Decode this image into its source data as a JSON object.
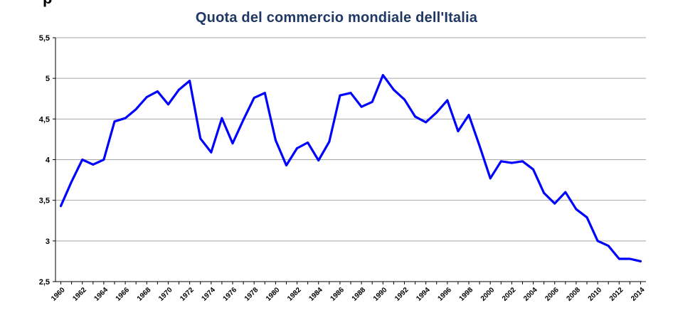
{
  "chart_data": {
    "type": "line",
    "title": "Quota del commercio mondiale dell'Italia",
    "xlabel": "",
    "ylabel": "",
    "ylim": [
      2.5,
      5.5
    ],
    "yticks": [
      "2,5",
      "3",
      "3,5",
      "4",
      "4,5",
      "5",
      "5,5"
    ],
    "grid": true,
    "legend": "none",
    "x_tick_labels": [
      "1960",
      "1962",
      "1964",
      "1966",
      "1968",
      "1970",
      "1972",
      "1974",
      "1976",
      "1978",
      "1980",
      "1982",
      "1984",
      "1986",
      "1988",
      "1990",
      "1992",
      "1994",
      "1996",
      "1998",
      "2000",
      "2002",
      "2004",
      "2006",
      "2008",
      "2010",
      "2012",
      "2014"
    ],
    "line_color": "#0000ff",
    "grid_color": "#a6a6a6",
    "series": [
      {
        "x": [
          1960,
          1961,
          1962,
          1963,
          1964,
          1965,
          1966,
          1967,
          1968,
          1969,
          1970,
          1971,
          1972,
          1973,
          1974,
          1975,
          1976,
          1977,
          1978,
          1979,
          1980,
          1981,
          1982,
          1983,
          1984,
          1985,
          1986,
          1987,
          1988,
          1989,
          1990,
          1991,
          1992,
          1993,
          1994,
          1995,
          1996,
          1997,
          1998,
          1999,
          2000,
          2001,
          2002,
          2003,
          2004,
          2005,
          2006,
          2007,
          2008,
          2009,
          2010,
          2011,
          2012,
          2013,
          2014
        ],
        "values": [
          3.43,
          3.73,
          4.0,
          3.94,
          4.0,
          4.47,
          4.51,
          4.62,
          4.77,
          4.84,
          4.68,
          4.86,
          4.97,
          4.26,
          4.09,
          4.51,
          4.2,
          4.49,
          4.76,
          4.82,
          4.24,
          3.93,
          4.14,
          4.21,
          3.99,
          4.22,
          4.79,
          4.82,
          4.65,
          4.71,
          5.04,
          4.86,
          4.74,
          4.53,
          4.46,
          4.58,
          4.73,
          4.35,
          4.55,
          4.17,
          3.77,
          3.98,
          3.96,
          3.98,
          3.88,
          3.59,
          3.46,
          3.6,
          3.39,
          3.29,
          3.0,
          2.94,
          2.78,
          2.78,
          2.75
        ]
      }
    ]
  },
  "page": {
    "stray_glyph": "p"
  }
}
